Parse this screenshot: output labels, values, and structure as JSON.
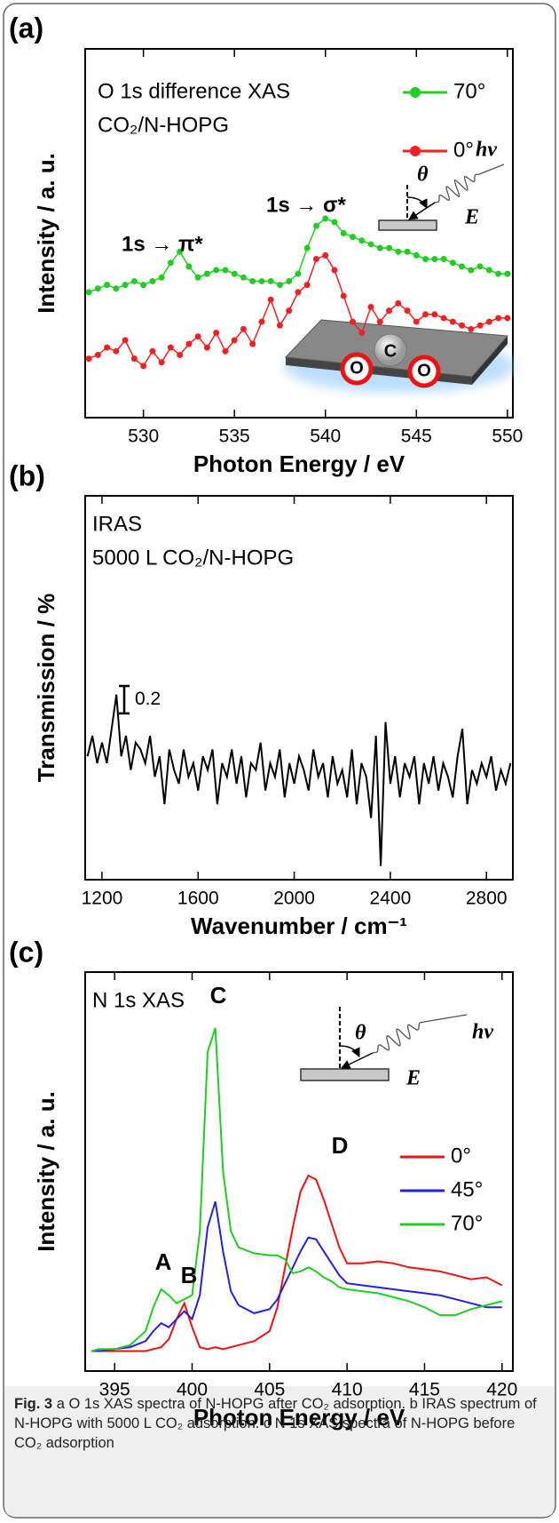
{
  "chart_data": [
    {
      "type": "line",
      "panel": "(a)",
      "markers": true,
      "x_label": "Photon Energy / eV",
      "y_label": "Intensity / a. u.",
      "xlim": [
        526.8,
        550.3
      ],
      "xticks": [
        530,
        535,
        540,
        545,
        550
      ],
      "ylim": [
        0,
        10
      ],
      "x": [
        527,
        527.5,
        528,
        528.5,
        529,
        529.5,
        530,
        530.5,
        531,
        531.5,
        532,
        532.5,
        533,
        533.5,
        534,
        534.5,
        535,
        535.5,
        536,
        536.5,
        537,
        537.5,
        538,
        538.5,
        539,
        539.5,
        540,
        540.5,
        541,
        541.5,
        542,
        542.5,
        543,
        543.5,
        544,
        544.5,
        545,
        545.5,
        546,
        546.5,
        547,
        547.5,
        548,
        548.5,
        549,
        549.5,
        550
      ],
      "series": [
        {
          "name": "70°",
          "color": "#22cc22",
          "values": [
            3.4,
            3.5,
            3.6,
            3.5,
            3.6,
            3.7,
            3.6,
            3.7,
            3.8,
            4.2,
            4.5,
            4.1,
            3.8,
            3.9,
            4.0,
            4.0,
            3.9,
            3.8,
            3.7,
            3.7,
            3.7,
            3.6,
            3.7,
            3.9,
            4.6,
            5.2,
            5.4,
            5.3,
            5.0,
            4.9,
            4.8,
            4.7,
            4.6,
            4.6,
            4.5,
            4.5,
            4.4,
            4.3,
            4.3,
            4.3,
            4.2,
            4.1,
            4.0,
            4.1,
            4.0,
            3.9,
            3.9
          ]
        },
        {
          "name": "0°",
          "color": "#ee2222",
          "values": [
            1.6,
            1.7,
            1.9,
            1.8,
            2.1,
            1.6,
            1.4,
            1.8,
            1.5,
            1.9,
            1.7,
            2.0,
            2.2,
            1.9,
            2.3,
            1.8,
            2.1,
            2.4,
            2.0,
            2.6,
            3.2,
            2.5,
            2.9,
            3.4,
            3.6,
            4.3,
            4.4,
            4.0,
            3.3,
            2.6,
            2.3,
            3.0,
            2.6,
            2.9,
            3.1,
            2.9,
            2.6,
            2.8,
            2.8,
            2.7,
            2.6,
            2.5,
            2.4,
            2.5,
            2.6,
            2.7,
            2.7
          ]
        }
      ],
      "annotations": [
        "O 1s difference XAS",
        "CO₂/N-HOPG",
        "1s → π*",
        "1s → σ*",
        "θ",
        "hν",
        "E",
        "O",
        "C",
        "O"
      ]
    },
    {
      "type": "line",
      "panel": "(b)",
      "markers": false,
      "x_label": "Wavenumber / cm⁻¹",
      "y_label": "Transmission / %",
      "xlim": [
        1130,
        2910
      ],
      "xticks": [
        1200,
        1600,
        2000,
        2400,
        2800
      ],
      "ylim": [
        0,
        2.8
      ],
      "scale_bar": 0.2,
      "x": [
        1140,
        1160,
        1180,
        1200,
        1220,
        1240,
        1260,
        1280,
        1300,
        1320,
        1340,
        1360,
        1380,
        1400,
        1420,
        1440,
        1460,
        1480,
        1500,
        1520,
        1540,
        1560,
        1580,
        1600,
        1620,
        1640,
        1660,
        1680,
        1700,
        1720,
        1740,
        1760,
        1780,
        1800,
        1820,
        1840,
        1860,
        1880,
        1900,
        1920,
        1940,
        1960,
        1980,
        2000,
        2020,
        2040,
        2060,
        2080,
        2100,
        2120,
        2140,
        2160,
        2180,
        2200,
        2220,
        2240,
        2260,
        2280,
        2300,
        2320,
        2340,
        2360,
        2380,
        2400,
        2420,
        2440,
        2460,
        2480,
        2500,
        2520,
        2540,
        2560,
        2580,
        2600,
        2620,
        2640,
        2660,
        2680,
        2700,
        2720,
        2740,
        2760,
        2780,
        2800,
        2820,
        2840,
        2860,
        2880,
        2900
      ],
      "series": [
        {
          "color": "#000000",
          "values": [
            0.9,
            1.05,
            0.85,
            1.0,
            0.85,
            1.1,
            1.35,
            0.9,
            1.05,
            0.8,
            1.0,
            0.95,
            0.85,
            1.05,
            0.75,
            0.9,
            0.55,
            0.95,
            0.8,
            0.7,
            0.95,
            0.75,
            0.85,
            0.65,
            0.9,
            0.8,
            0.95,
            0.55,
            0.85,
            0.75,
            0.95,
            0.7,
            0.9,
            0.6,
            0.85,
            0.8,
            1.0,
            0.65,
            0.85,
            0.75,
            0.95,
            0.6,
            0.85,
            0.7,
            0.9,
            0.8,
            0.65,
            0.95,
            0.75,
            0.85,
            0.6,
            0.9,
            0.7,
            0.8,
            0.6,
            0.95,
            0.55,
            0.85,
            0.75,
            0.45,
            1.05,
            0.1,
            1.15,
            0.7,
            0.9,
            0.6,
            0.85,
            0.75,
            0.9,
            0.55,
            0.85,
            0.7,
            0.9,
            0.65,
            0.85,
            0.75,
            0.6,
            0.9,
            1.1,
            0.55,
            0.8,
            0.7,
            0.85,
            0.75,
            0.9,
            0.65,
            0.8,
            0.7,
            0.85
          ]
        }
      ],
      "annotations": [
        "IRAS",
        "5000 L CO₂/N-HOPG"
      ]
    },
    {
      "type": "line",
      "panel": "(c)",
      "markers": false,
      "x_label": "Photon Energy / eV",
      "y_label": "Intensity / a. u.",
      "xlim": [
        393.1,
        420.7
      ],
      "xticks": [
        395,
        400,
        405,
        410,
        415,
        420
      ],
      "ylim": [
        0,
        10
      ],
      "x": [
        393.5,
        394,
        395,
        396,
        397,
        397.5,
        398,
        398.5,
        399,
        399.5,
        400,
        400.5,
        401,
        401.5,
        402,
        402.5,
        403,
        404,
        405,
        405.5,
        406,
        406.5,
        407,
        407.5,
        408,
        408.5,
        409,
        409.5,
        410,
        411,
        412,
        413,
        414,
        415,
        416,
        417,
        418,
        419,
        420
      ],
      "series": [
        {
          "name": "0°",
          "color": "#ee1111",
          "values": [
            0.5,
            0.5,
            0.5,
            0.5,
            0.5,
            0.55,
            0.6,
            0.8,
            1.3,
            1.7,
            1.1,
            0.6,
            0.55,
            0.6,
            0.55,
            0.6,
            0.65,
            0.75,
            1.0,
            1.6,
            2.6,
            3.6,
            4.5,
            4.9,
            4.8,
            4.3,
            3.7,
            3.1,
            2.7,
            2.7,
            2.75,
            2.7,
            2.6,
            2.55,
            2.5,
            2.4,
            2.3,
            2.35,
            2.15
          ]
        },
        {
          "name": "45°",
          "color": "#2222dd",
          "values": [
            0.5,
            0.5,
            0.55,
            0.6,
            0.75,
            1.0,
            1.2,
            1.1,
            1.3,
            1.5,
            1.3,
            1.9,
            3.6,
            4.25,
            3.0,
            2.0,
            1.65,
            1.45,
            1.55,
            1.8,
            2.2,
            2.6,
            3.0,
            3.35,
            3.3,
            3.0,
            2.7,
            2.4,
            2.2,
            2.15,
            2.1,
            2.05,
            2.0,
            1.95,
            1.9,
            1.8,
            1.7,
            1.6,
            1.6
          ]
        },
        {
          "name": "70°",
          "color": "#22cc22",
          "values": [
            0.5,
            0.55,
            0.55,
            0.65,
            1.0,
            1.6,
            2.05,
            1.9,
            1.7,
            1.8,
            1.9,
            3.5,
            8.0,
            8.6,
            5.0,
            3.5,
            3.1,
            2.95,
            2.9,
            2.9,
            2.8,
            2.45,
            2.5,
            2.6,
            2.5,
            2.35,
            2.25,
            2.1,
            2.05,
            2.0,
            1.95,
            1.85,
            1.75,
            1.6,
            1.4,
            1.4,
            1.55,
            1.65,
            1.75
          ]
        }
      ],
      "annotations": [
        "N 1s XAS",
        "A",
        "B",
        "C",
        "D",
        "θ",
        "hν",
        "E"
      ]
    }
  ],
  "caption": {
    "label": "Fig. 3",
    "text": "a O 1s XAS spectra of N-HOPG after CO₂ adsorption. b IRAS spectrum of N-HOPG with 5000 L CO₂ adsorption. c N 1s XAS spectra of N-HOPG before CO₂ adsorption"
  }
}
